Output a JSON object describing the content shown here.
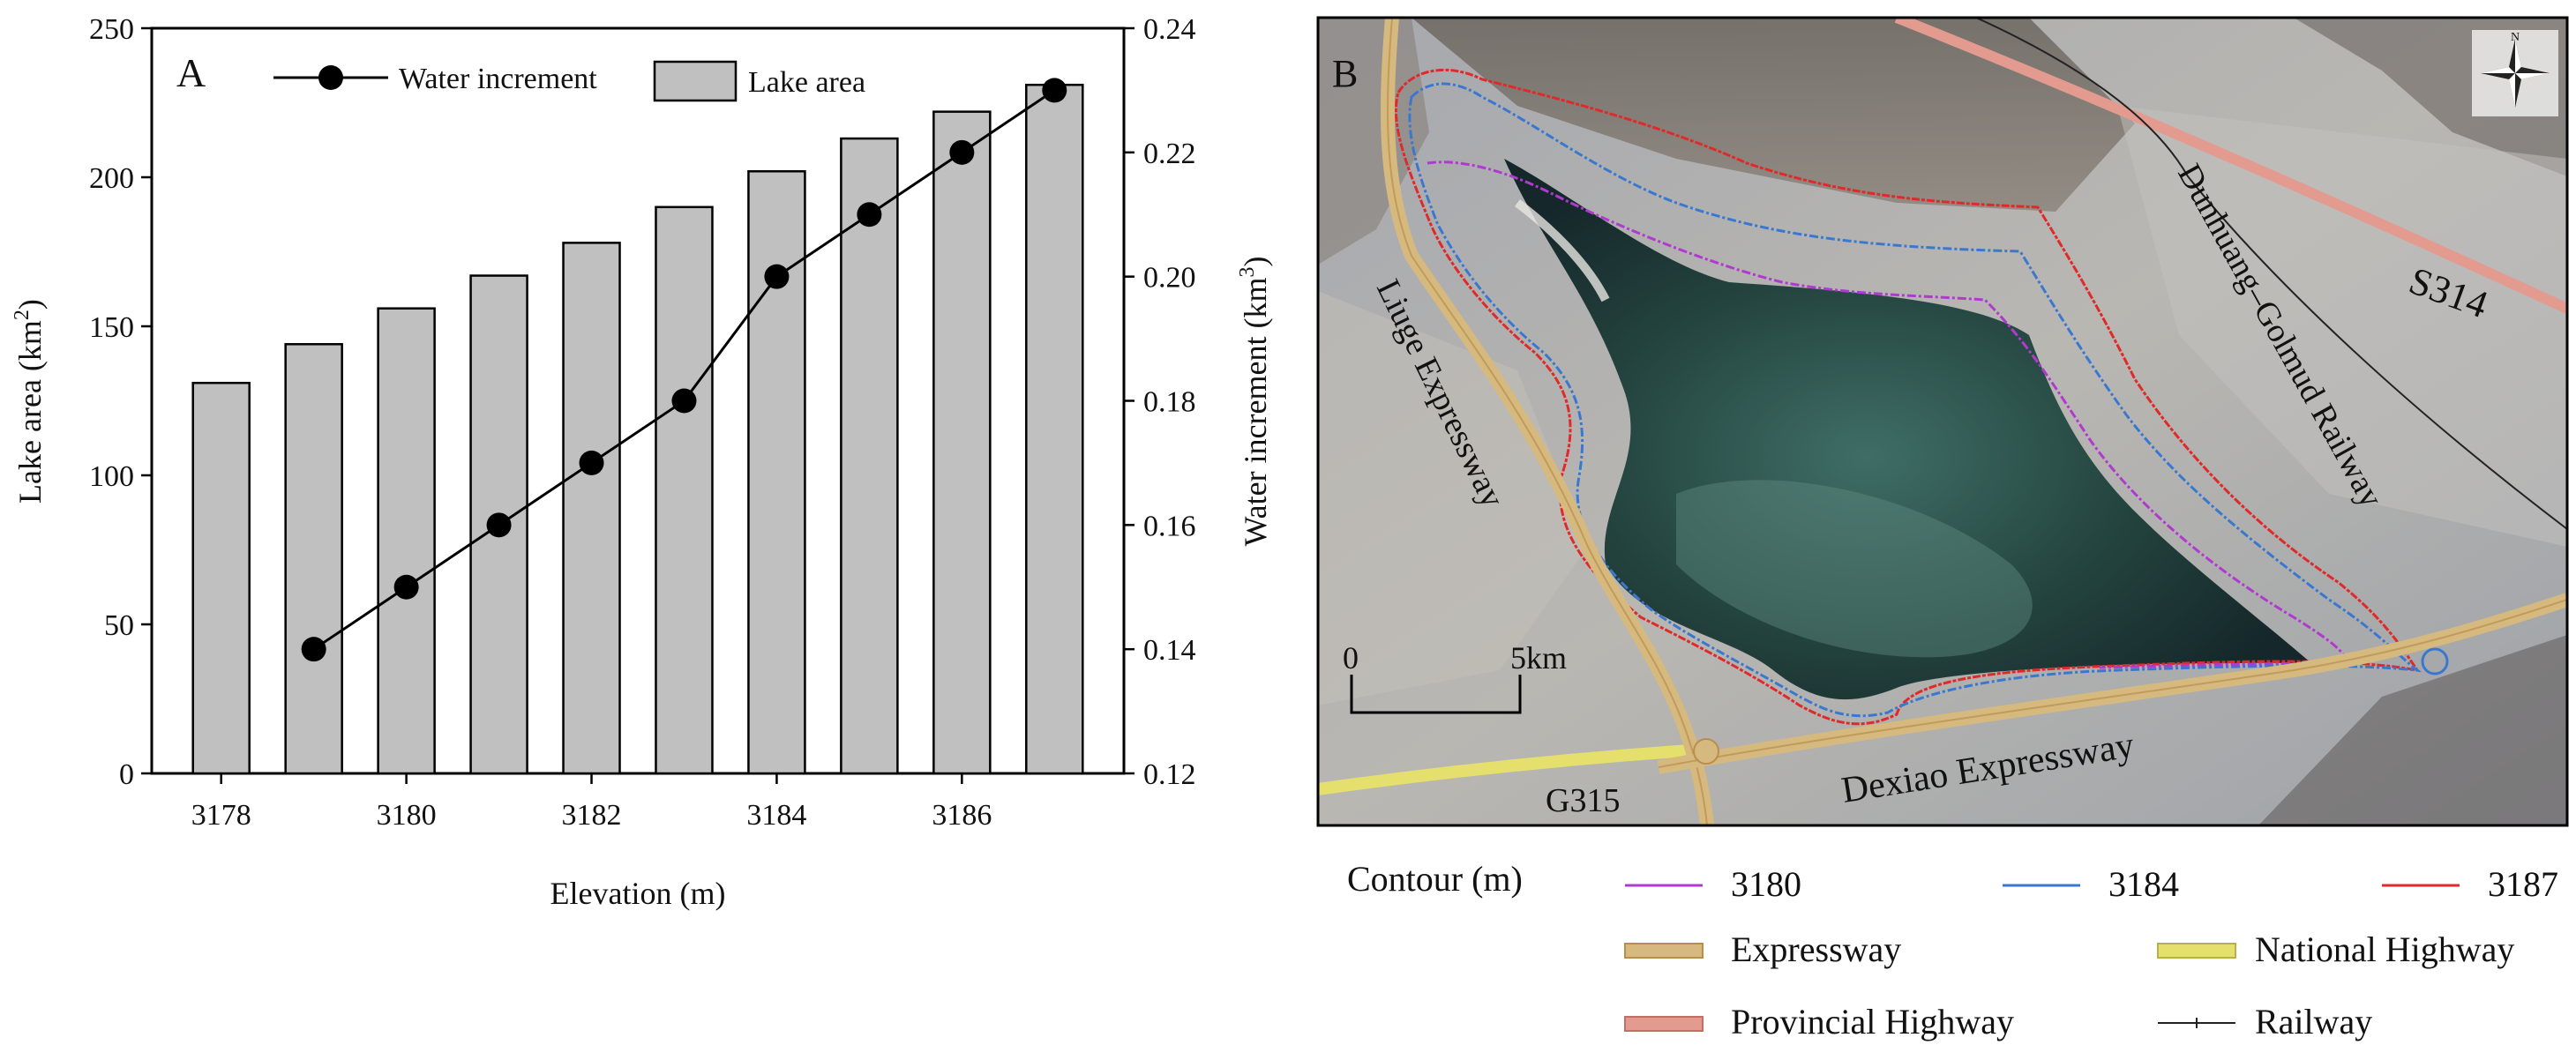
{
  "panel_a": {
    "panel_label": "A",
    "chart_data": {
      "type": "bar",
      "xlabel": "Elevation (m)",
      "ylabel_left": "Lake area (km",
      "ylabel_left_sup": "2",
      "ylabel_left_end": ")",
      "ylabel_right": "Water increment (km",
      "ylabel_right_sup": "3",
      "ylabel_right_end": ")",
      "x_ticks": [
        "3178",
        "3180",
        "3182",
        "3184",
        "3186"
      ],
      "y_left_ticks": [
        "0",
        "50",
        "100",
        "150",
        "200",
        "250"
      ],
      "y_right_ticks": [
        "0.12",
        "0.14",
        "0.16",
        "0.18",
        "0.20",
        "0.22",
        "0.24"
      ],
      "ylim_left": [
        0,
        250
      ],
      "ylim_right": [
        0.12,
        0.24
      ],
      "xlim": [
        3177.25,
        3187.75
      ],
      "series": [
        {
          "name": "Lake area",
          "type": "bar",
          "axis": "left",
          "color": "#c0c0c0",
          "x": [
            3178,
            3179,
            3180,
            3181,
            3182,
            3183,
            3184,
            3185,
            3186,
            3187
          ],
          "values": [
            131,
            144,
            156,
            167,
            178,
            190,
            202,
            213,
            222,
            231
          ]
        },
        {
          "name": "Water increment",
          "type": "line",
          "axis": "right",
          "color": "#000000",
          "x": [
            3179,
            3180,
            3181,
            3182,
            3183,
            3184,
            3185,
            3186,
            3187
          ],
          "values": [
            0.14,
            0.15,
            0.16,
            0.17,
            0.18,
            0.2,
            0.21,
            0.22,
            0.23
          ]
        }
      ],
      "legend": [
        "Water increment",
        "Lake area"
      ],
      "legend_position": "top"
    }
  },
  "panel_b": {
    "panel_label": "B",
    "labels": {
      "liuge": "Liuge Expressway",
      "dunhuang": "Dunhuang–Golmud Railway",
      "s314": "S314",
      "g315": "G315",
      "dexiao": "Dexiao Expressway"
    },
    "scale": {
      "zero": "0",
      "end": "5",
      "unit": "km"
    },
    "compass": {
      "north": "N",
      "icon": "compass-icon"
    },
    "colors": {
      "contour_3180": "#b03ad0",
      "contour_3184": "#3a78d0",
      "contour_3187": "#e02a2a",
      "expressway": "#d6b97e",
      "national_highway": "#e5df6e",
      "provincial_highway": "#e39a8f",
      "railway": "#222222"
    },
    "legend": {
      "contour_title": "Contour (m)",
      "contours": [
        "3180",
        "3184",
        "3187"
      ],
      "expressway": "Expressway",
      "national_highway": "National Highway",
      "provincial_highway": "Provincial Highway",
      "railway": "Railway"
    }
  }
}
